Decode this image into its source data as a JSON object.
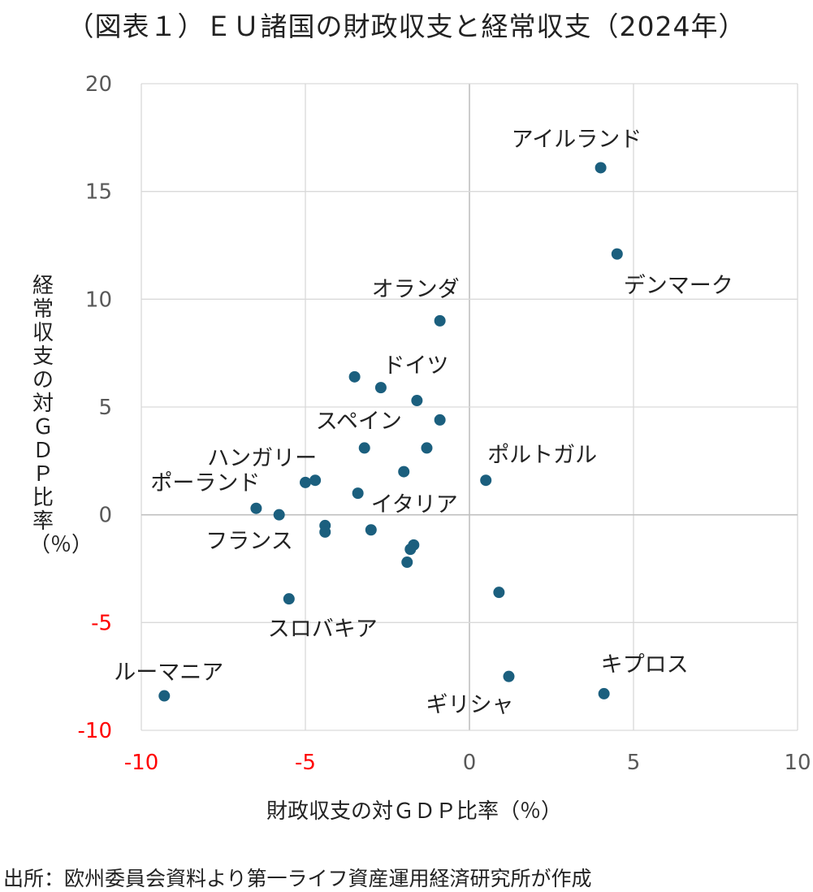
{
  "title": "（図表１）ＥＵ諸国の財政収支と経常収支（2024年）",
  "source": "出所：欧州委員会資料より第一ライフ資産運用経済研究所が作成",
  "colors": {
    "marker": "#1b5f7e",
    "grid": "#d9d9d9",
    "zero_axis": "#bfbfbf",
    "tick": "#595959",
    "negative_tick": "#ff0000",
    "text": "#222222"
  },
  "chart_data": {
    "type": "scatter",
    "title": "（図表１）ＥＵ諸国の財政収支と経常収支（2024年）",
    "xlabel": "財政収支の対ＧＤＰ比率（％）",
    "ylabel": "経常収支の対ＧＤＰ比率（％）",
    "xlim": [
      -10,
      10
    ],
    "ylim": [
      -10,
      20
    ],
    "xticks": [
      -10,
      -5,
      0,
      5,
      10
    ],
    "yticks": [
      -10,
      -5,
      0,
      5,
      10,
      15,
      20
    ],
    "grid": true,
    "negative_ticks_red": true,
    "points": [
      {
        "x": 4.0,
        "y": 16.1,
        "label": "アイルランド"
      },
      {
        "x": 4.5,
        "y": 12.1,
        "label": "デンマーク"
      },
      {
        "x": -0.9,
        "y": 9.0,
        "label": "オランダ"
      },
      {
        "x": -3.5,
        "y": 6.4,
        "label": ""
      },
      {
        "x": -2.7,
        "y": 5.9,
        "label": ""
      },
      {
        "x": -1.6,
        "y": 5.3,
        "label": "ドイツ"
      },
      {
        "x": -0.9,
        "y": 4.4,
        "label": ""
      },
      {
        "x": -3.2,
        "y": 3.1,
        "label": "スペイン"
      },
      {
        "x": -1.3,
        "y": 3.1,
        "label": ""
      },
      {
        "x": -2.0,
        "y": 2.0,
        "label": ""
      },
      {
        "x": 0.5,
        "y": 1.6,
        "label": "ポルトガル"
      },
      {
        "x": -4.7,
        "y": 1.6,
        "label": "ハンガリー"
      },
      {
        "x": -5.0,
        "y": 1.5,
        "label": ""
      },
      {
        "x": -3.4,
        "y": 1.0,
        "label": ""
      },
      {
        "x": -6.5,
        "y": 0.3,
        "label": "ポーランド"
      },
      {
        "x": -5.8,
        "y": 0.0,
        "label": ""
      },
      {
        "x": -4.4,
        "y": -0.5,
        "label": ""
      },
      {
        "x": -4.4,
        "y": -0.8,
        "label": ""
      },
      {
        "x": -3.0,
        "y": -0.7,
        "label": "イタリア"
      },
      {
        "x": -1.7,
        "y": -1.4,
        "label": ""
      },
      {
        "x": -1.8,
        "y": -1.6,
        "label": "フランス"
      },
      {
        "x": -1.9,
        "y": -2.2,
        "label": ""
      },
      {
        "x": 0.9,
        "y": -3.6,
        "label": ""
      },
      {
        "x": -5.5,
        "y": -3.9,
        "label": "スロバキア"
      },
      {
        "x": 1.2,
        "y": -7.5,
        "label": "ギリシャ"
      },
      {
        "x": 4.1,
        "y": -8.3,
        "label": "キプロス"
      },
      {
        "x": -9.3,
        "y": -8.4,
        "label": "ルーマニア"
      }
    ]
  }
}
